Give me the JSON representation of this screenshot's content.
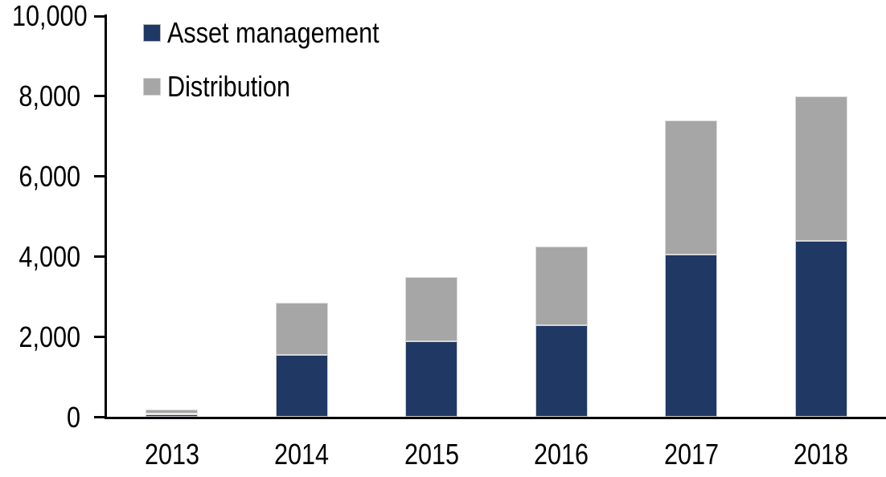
{
  "chart": {
    "background_color": "#ffffff",
    "axis_color": "#000000",
    "text_color": "#000000",
    "legend": {
      "items": [
        {
          "label": "Asset management",
          "color": "#1f3864"
        },
        {
          "label": "Distribution",
          "color": "#a6a6a6"
        }
      ]
    }
  },
  "chart_data": {
    "type": "bar",
    "stacked": true,
    "title": "",
    "xlabel": "",
    "ylabel": "",
    "categories": [
      "2013",
      "2014",
      "2015",
      "2016",
      "2017",
      "2018"
    ],
    "series": [
      {
        "name": "Asset management",
        "color": "#1f3864",
        "values": [
          80,
          1550,
          1900,
          2300,
          4050,
          4400
        ]
      },
      {
        "name": "Distribution",
        "color": "#a6a6a6",
        "values": [
          120,
          1300,
          1600,
          1950,
          3350,
          3600
        ]
      }
    ],
    "stack_totals": [
      200,
      2850,
      3500,
      4250,
      7400,
      8000
    ],
    "ylim": [
      0,
      10000
    ],
    "yticks": [
      0,
      2000,
      4000,
      6000,
      8000,
      10000
    ],
    "ytick_labels": [
      "0",
      "2,000",
      "4,000",
      "6,000",
      "8,000",
      "10,000"
    ],
    "grid": false,
    "legend_position": "top-left-inside"
  }
}
